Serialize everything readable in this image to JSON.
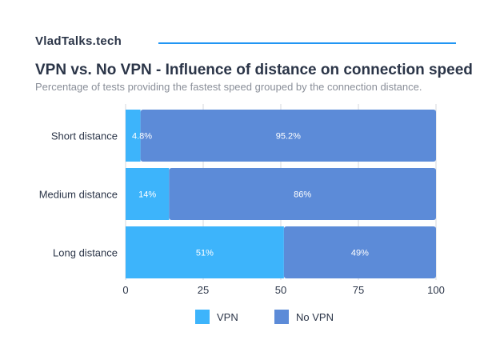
{
  "header": {
    "brand": "VladTalks.tech",
    "title": "VPN vs. No VPN - Influence of distance on connection speed",
    "subtitle": "Percentage of tests providing the fastest speed grouped by the connection distance."
  },
  "colors": {
    "vpn": "#3db4fb",
    "no_vpn": "#5c8bd8",
    "brand_rule": "#2196f3",
    "grid": "#d4d7dc"
  },
  "chart_data": {
    "type": "bar",
    "orientation": "horizontal",
    "stacked": true,
    "categories": [
      "Short distance",
      "Medium distance",
      "Long distance"
    ],
    "series": [
      {
        "name": "VPN",
        "values": [
          4.8,
          14,
          51
        ],
        "labels": [
          "4.8%",
          "14%",
          "51%"
        ]
      },
      {
        "name": "No VPN",
        "values": [
          95.2,
          86,
          49
        ],
        "labels": [
          "95.2%",
          "86%",
          "49%"
        ]
      }
    ],
    "xlim": [
      0,
      100
    ],
    "xticks": [
      0,
      25,
      50,
      75,
      100
    ],
    "grid": true,
    "legend": "bottom"
  },
  "legend": {
    "vpn_label": "VPN",
    "no_vpn_label": "No VPN"
  }
}
